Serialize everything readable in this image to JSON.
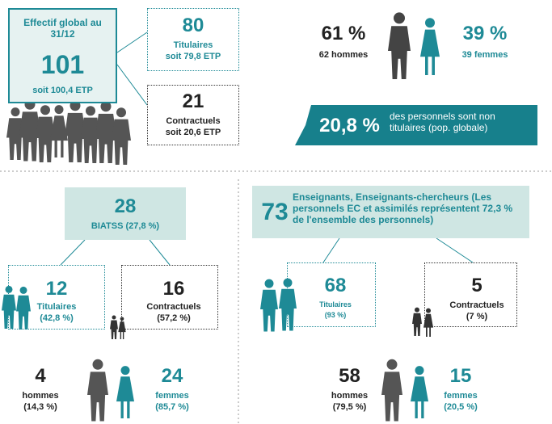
{
  "global": {
    "title": "Effectif global au 31/12",
    "total": "101",
    "etp": "soit 100,4 ETP",
    "titulaires": {
      "value": "80",
      "label": "Titulaires",
      "etp": "soit 79,8 ETP"
    },
    "contractuels": {
      "value": "21",
      "label": "Contractuels",
      "etp": "soit 20,6 ETP"
    },
    "hommes": {
      "value": "61 %",
      "label": "62 hommes"
    },
    "femmes": {
      "value": "39 %",
      "label": "39 femmes"
    },
    "banner": {
      "value": "20,8 %",
      "text": "des personnels sont non titulaires (pop. globale)"
    }
  },
  "biatss": {
    "value": "28",
    "label": "BIATSS (27,8 %)",
    "titulaires": {
      "value": "12",
      "label": "Titulaires",
      "share": "(42,8 %)"
    },
    "contractuels": {
      "value": "16",
      "label": "Contractuels",
      "share": "(57,2 %)"
    },
    "hommes": {
      "value": "4",
      "label": "hommes",
      "share": "(14,3 %)"
    },
    "femmes": {
      "value": "24",
      "label": "femmes",
      "share": "(85,7 %)"
    }
  },
  "enseignants": {
    "value": "73",
    "label": "Enseignants, Enseignants-chercheurs (Les personnels EC et assimilés représentent 72,3 % de l'ensemble des personnels)",
    "titulaires": {
      "value": "68",
      "label": "Titulaires",
      "share": "(93 %)"
    },
    "contractuels": {
      "value": "5",
      "label": "Contractuels",
      "share": "(7 %)"
    },
    "hommes": {
      "value": "58",
      "label": "hommes",
      "share": "(79,5 %)"
    },
    "femmes": {
      "value": "15",
      "label": "femmes",
      "share": "(20,5 %)"
    }
  }
}
